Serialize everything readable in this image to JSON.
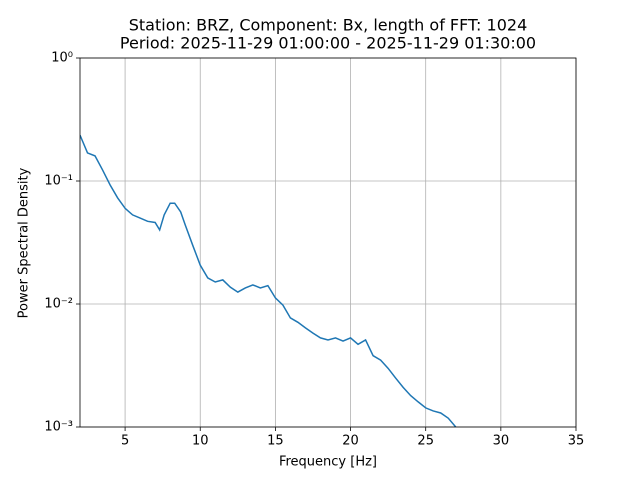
{
  "chart_data": {
    "type": "line",
    "title": "Station: BRZ, Component: Bx, length of FFT: 1024",
    "subtitle": "Period: 2025-11-29 01:00:00 - 2025-11-29 01:30:00",
    "x_label": "Frequency [Hz]",
    "y_label": "Power Spectral Density",
    "x": [
      2.0,
      2.5,
      3.0,
      3.5,
      4.0,
      4.5,
      5.0,
      5.5,
      6.0,
      6.5,
      7.0,
      7.3,
      7.6,
      8.0,
      8.3,
      8.7,
      9.0,
      9.5,
      10.0,
      10.5,
      11.0,
      11.5,
      12.0,
      12.5,
      13.0,
      13.5,
      14.0,
      14.5,
      15.0,
      15.5,
      16.0,
      16.5,
      17.0,
      17.5,
      18.0,
      18.5,
      19.0,
      19.5,
      20.0,
      20.5,
      21.0,
      21.5,
      22.0,
      22.5,
      23.0,
      23.5,
      24.0,
      24.5,
      25.0,
      25.5,
      26.0,
      26.5,
      27.0
    ],
    "series": [
      {
        "name": "Bx",
        "color": "#1f77b4",
        "values": [
          0.236,
          0.169,
          0.16,
          0.123,
          0.093,
          0.073,
          0.06,
          0.053,
          0.05,
          0.047,
          0.046,
          0.04,
          0.053,
          0.066,
          0.066,
          0.056,
          0.044,
          0.03,
          0.0207,
          0.0163,
          0.0151,
          0.0157,
          0.0137,
          0.0125,
          0.0135,
          0.0143,
          0.0135,
          0.0141,
          0.0112,
          0.0098,
          0.0077,
          0.0071,
          0.0064,
          0.0058,
          0.0053,
          0.0051,
          0.0053,
          0.005,
          0.0053,
          0.0047,
          0.0051,
          0.0038,
          0.0035,
          0.003,
          0.0025,
          0.0021,
          0.0018,
          0.0016,
          0.00143,
          0.00135,
          0.0013,
          0.00118,
          0.001
        ]
      }
    ],
    "xlim": [
      2,
      35
    ],
    "xticks": [
      5,
      10,
      15,
      20,
      25,
      30,
      35
    ],
    "ylim": [
      0.001,
      1
    ],
    "log_y": true,
    "yticks": [
      {
        "value": 1,
        "label": "10⁰"
      },
      {
        "value": 0.1,
        "label": "10⁻¹"
      },
      {
        "value": 0.01,
        "label": "10⁻²"
      },
      {
        "value": 0.001,
        "label": "10⁻³"
      }
    ],
    "grid": true
  }
}
